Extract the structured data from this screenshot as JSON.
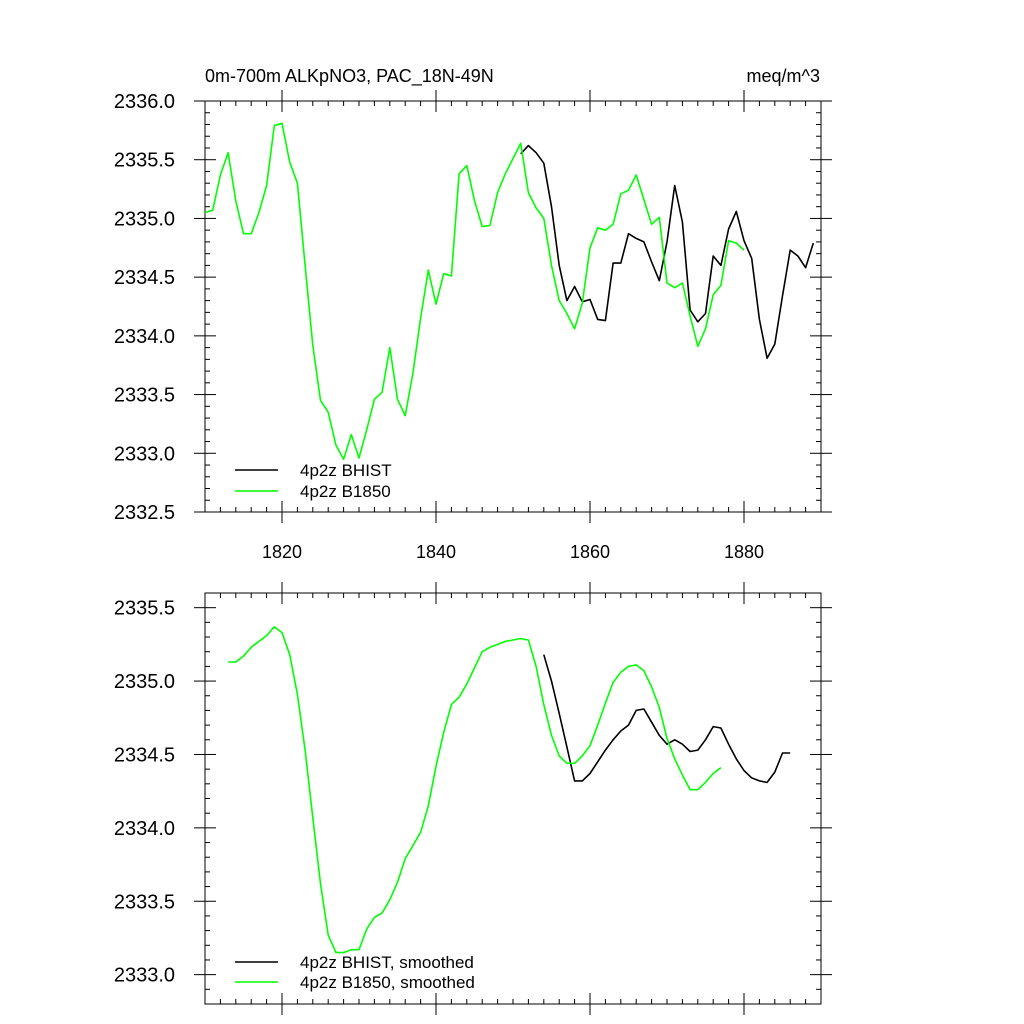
{
  "header": {
    "left_title": "0m-700m ALKpNO3, PAC_18N-49N",
    "right_title": "meq/m^3"
  },
  "colors": {
    "bhist": "#000000",
    "b1850": "#00ff00",
    "axis": "#000000"
  },
  "chart_data": [
    {
      "type": "line",
      "xlim": [
        1810,
        1890
      ],
      "ylim": [
        2332.5,
        2336.0
      ],
      "x_ticks": [
        1820,
        1840,
        1860,
        1880
      ],
      "x_tick_labels": [
        "1820",
        "1840",
        "1860",
        "1880"
      ],
      "y_ticks": [
        2332.5,
        2333.0,
        2333.5,
        2334.0,
        2334.5,
        2335.0,
        2335.5,
        2336.0
      ],
      "y_tick_labels": [
        "2332.5",
        "2333.0",
        "2333.5",
        "2334.0",
        "2334.5",
        "2335.0",
        "2335.5",
        "2336.0"
      ],
      "legend_position": "bottom-left",
      "series": [
        {
          "name": "4p2z BHIST",
          "color": "#000000",
          "x": [
            1851,
            1852,
            1853,
            1854,
            1855,
            1856,
            1857,
            1858,
            1859,
            1860,
            1861,
            1862,
            1863,
            1864,
            1865,
            1866,
            1867,
            1868,
            1869,
            1870,
            1871,
            1872,
            1873,
            1874,
            1875,
            1876,
            1877,
            1878,
            1879,
            1880,
            1881,
            1882,
            1883,
            1884,
            1885,
            1886,
            1887,
            1888,
            1889
          ],
          "y": [
            2335.55,
            2335.62,
            2335.56,
            2335.47,
            2335.1,
            2334.6,
            2334.3,
            2334.42,
            2334.29,
            2334.31,
            2334.14,
            2334.13,
            2334.62,
            2334.62,
            2334.87,
            2334.83,
            2334.8,
            2334.63,
            2334.47,
            2334.8,
            2335.28,
            2334.97,
            2334.22,
            2334.12,
            2334.19,
            2334.68,
            2334.6,
            2334.91,
            2335.06,
            2334.81,
            2334.66,
            2334.14,
            2333.81,
            2333.93,
            2334.34,
            2334.73,
            2334.68,
            2334.58,
            2334.79
          ]
        },
        {
          "name": "4p2z B1850",
          "color": "#00ff00",
          "x": [
            1810,
            1811,
            1812,
            1813,
            1814,
            1815,
            1816,
            1817,
            1818,
            1819,
            1820,
            1821,
            1822,
            1823,
            1824,
            1825,
            1826,
            1827,
            1828,
            1829,
            1830,
            1831,
            1832,
            1833,
            1834,
            1835,
            1836,
            1837,
            1838,
            1839,
            1840,
            1841,
            1842,
            1843,
            1844,
            1845,
            1846,
            1847,
            1848,
            1849,
            1850,
            1851,
            1852,
            1853,
            1854,
            1855,
            1856,
            1857,
            1858,
            1859,
            1860,
            1861,
            1862,
            1863,
            1864,
            1865,
            1866,
            1867,
            1868,
            1869,
            1870,
            1871,
            1872,
            1873,
            1874,
            1875,
            1876,
            1877,
            1878,
            1879,
            1880
          ],
          "y": [
            2335.05,
            2335.07,
            2335.37,
            2335.56,
            2335.15,
            2334.87,
            2334.87,
            2335.05,
            2335.28,
            2335.79,
            2335.81,
            2335.48,
            2335.3,
            2334.6,
            2333.92,
            2333.45,
            2333.35,
            2333.07,
            2332.95,
            2333.16,
            2332.96,
            2333.2,
            2333.46,
            2333.52,
            2333.9,
            2333.46,
            2333.32,
            2333.68,
            2334.15,
            2334.56,
            2334.27,
            2334.53,
            2334.51,
            2335.38,
            2335.45,
            2335.15,
            2334.93,
            2334.94,
            2335.22,
            2335.38,
            2335.51,
            2335.64,
            2335.22,
            2335.09,
            2335.0,
            2334.6,
            2334.3,
            2334.19,
            2334.06,
            2334.28,
            2334.75,
            2334.92,
            2334.9,
            2334.95,
            2335.21,
            2335.24,
            2335.37,
            2335.16,
            2334.95,
            2335.01,
            2334.45,
            2334.41,
            2334.45,
            2334.17,
            2333.91,
            2334.06,
            2334.35,
            2334.43,
            2334.81,
            2334.79,
            2334.73
          ]
        }
      ]
    },
    {
      "type": "line",
      "xlim": [
        1810,
        1890
      ],
      "ylim": [
        2332.8,
        2335.6
      ],
      "x_ticks": [
        1820,
        1840,
        1860,
        1880
      ],
      "y_ticks": [
        2333.0,
        2333.5,
        2334.0,
        2334.5,
        2335.0,
        2335.5
      ],
      "y_tick_labels": [
        "2333.0",
        "2333.5",
        "2334.0",
        "2334.5",
        "2335.0",
        "2335.5"
      ],
      "legend_position": "bottom-left",
      "series": [
        {
          "name": "4p2z BHIST, smoothed",
          "color": "#000000",
          "x": [
            1854,
            1855,
            1856,
            1857,
            1858,
            1859,
            1860,
            1861,
            1862,
            1863,
            1864,
            1865,
            1866,
            1867,
            1868,
            1869,
            1870,
            1871,
            1872,
            1873,
            1874,
            1875,
            1876,
            1877,
            1878,
            1879,
            1880,
            1881,
            1882,
            1883,
            1884,
            1885,
            1886
          ],
          "y": [
            2335.18,
            2335.0,
            2334.78,
            2334.55,
            2334.32,
            2334.32,
            2334.37,
            2334.45,
            2334.53,
            2334.6,
            2334.66,
            2334.7,
            2334.8,
            2334.81,
            2334.72,
            2334.63,
            2334.57,
            2334.6,
            2334.57,
            2334.52,
            2334.53,
            2334.6,
            2334.69,
            2334.68,
            2334.57,
            2334.47,
            2334.39,
            2334.34,
            2334.32,
            2334.31,
            2334.38,
            2334.51,
            2334.51
          ]
        },
        {
          "name": "4p2z B1850, smoothed",
          "color": "#00ff00",
          "x": [
            1813,
            1814,
            1815,
            1816,
            1817,
            1818,
            1819,
            1820,
            1821,
            1822,
            1823,
            1824,
            1825,
            1826,
            1827,
            1828,
            1829,
            1830,
            1831,
            1832,
            1833,
            1834,
            1835,
            1836,
            1837,
            1838,
            1839,
            1840,
            1841,
            1842,
            1843,
            1844,
            1845,
            1846,
            1847,
            1848,
            1849,
            1850,
            1851,
            1852,
            1853,
            1854,
            1855,
            1856,
            1857,
            1858,
            1859,
            1860,
            1861,
            1862,
            1863,
            1864,
            1865,
            1866,
            1867,
            1868,
            1869,
            1870,
            1871,
            1872,
            1873,
            1874,
            1875,
            1876,
            1877
          ],
          "y": [
            2335.13,
            2335.13,
            2335.17,
            2335.23,
            2335.27,
            2335.31,
            2335.37,
            2335.33,
            2335.18,
            2334.91,
            2334.53,
            2334.07,
            2333.62,
            2333.27,
            2333.15,
            2333.15,
            2333.17,
            2333.17,
            2333.31,
            2333.39,
            2333.42,
            2333.51,
            2333.63,
            2333.79,
            2333.88,
            2333.97,
            2334.15,
            2334.42,
            2334.65,
            2334.84,
            2334.89,
            2334.98,
            2335.09,
            2335.2,
            2335.23,
            2335.25,
            2335.27,
            2335.28,
            2335.29,
            2335.28,
            2335.1,
            2334.84,
            2334.63,
            2334.49,
            2334.44,
            2334.44,
            2334.49,
            2334.56,
            2334.7,
            2334.85,
            2334.99,
            2335.06,
            2335.1,
            2335.11,
            2335.07,
            2334.96,
            2334.82,
            2334.61,
            2334.47,
            2334.36,
            2334.26,
            2334.26,
            2334.31,
            2334.37,
            2334.41
          ]
        }
      ]
    }
  ]
}
